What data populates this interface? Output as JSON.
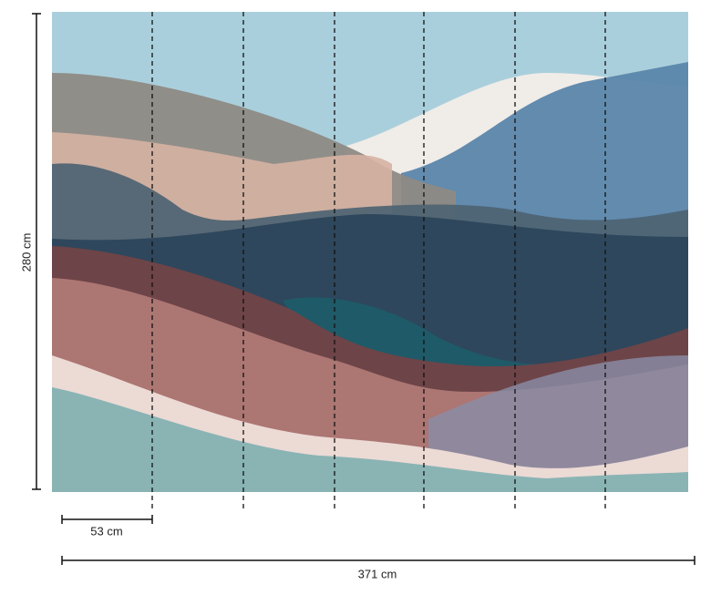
{
  "dimensions": {
    "height": "280 cm",
    "panel_width": "53 cm",
    "total_width": "371 cm"
  }
}
